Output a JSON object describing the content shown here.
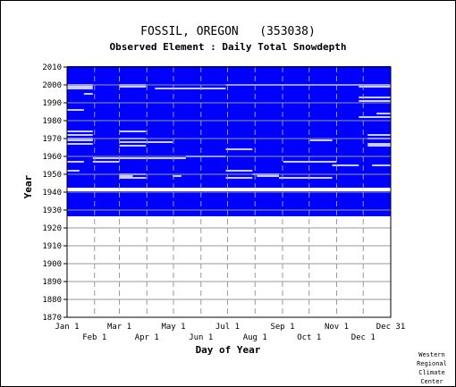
{
  "chart_data": {
    "type": "heatmap",
    "title": "FOSSIL, OREGON   (353038)",
    "subtitle": "Observed Element : Daily Total Snowdepth",
    "xlabel": "Day of Year",
    "ylabel": "Year",
    "x_ticks_top_row": [
      "Jan 1",
      "Mar 1",
      "May 1",
      "Jul 1",
      "Sep 1",
      "Nov 1",
      "Dec 31"
    ],
    "x_ticks_bottom_row": [
      "Feb 1",
      "Apr 1",
      "Jun 1",
      "Aug 1",
      "Oct 1",
      "Dec 1"
    ],
    "y_ticks": [
      "1870",
      "1880",
      "1890",
      "1900",
      "1910",
      "1920",
      "1930",
      "1940",
      "1950",
      "1960",
      "1970",
      "1980",
      "1990",
      "2000",
      "2010"
    ],
    "xlim": [
      1,
      366
    ],
    "ylim": [
      1870,
      2010
    ],
    "grid": true,
    "color_observed": "#0000ff",
    "color_missing": "#ffffff",
    "observed_year_ranges": [
      [
        1927,
        1940
      ],
      [
        1943,
        2010
      ]
    ],
    "missing_rows": [
      [
        2000,
        1,
        30
      ],
      [
        2000,
        60,
        90
      ],
      [
        2000,
        180,
        366
      ],
      [
        1999,
        1,
        30
      ],
      [
        1999,
        60,
        90
      ],
      [
        1999,
        330,
        366
      ],
      [
        1998,
        1,
        30
      ],
      [
        1998,
        100,
        180
      ],
      [
        1995,
        20,
        30
      ],
      [
        1993,
        330,
        366
      ],
      [
        1991,
        330,
        366
      ],
      [
        1986,
        1,
        20
      ],
      [
        1984,
        350,
        366
      ],
      [
        1982,
        330,
        366
      ],
      [
        1974,
        1,
        30
      ],
      [
        1974,
        60,
        90
      ],
      [
        1972,
        1,
        30
      ],
      [
        1972,
        340,
        366
      ],
      [
        1970,
        1,
        30
      ],
      [
        1970,
        60,
        90
      ],
      [
        1970,
        340,
        366
      ],
      [
        1969,
        1,
        30
      ],
      [
        1969,
        275,
        300
      ],
      [
        1968,
        60,
        90
      ],
      [
        1968,
        90,
        120
      ],
      [
        1967,
        1,
        30
      ],
      [
        1967,
        340,
        366
      ],
      [
        1966,
        60,
        90
      ],
      [
        1966,
        340,
        366
      ],
      [
        1964,
        180,
        210
      ],
      [
        1960,
        135,
        180
      ],
      [
        1959,
        30,
        90
      ],
      [
        1959,
        90,
        135
      ],
      [
        1957,
        1,
        20
      ],
      [
        1957,
        30,
        60
      ],
      [
        1957,
        245,
        305
      ],
      [
        1955,
        300,
        330
      ],
      [
        1955,
        345,
        366
      ],
      [
        1952,
        1,
        15
      ],
      [
        1952,
        180,
        210
      ],
      [
        1950,
        60,
        90
      ],
      [
        1950,
        210,
        240
      ],
      [
        1949,
        60,
        75
      ],
      [
        1949,
        120,
        130
      ],
      [
        1949,
        215,
        240
      ],
      [
        1948,
        60,
        90
      ],
      [
        1948,
        180,
        210
      ],
      [
        1948,
        240,
        300
      ]
    ]
  }
}
